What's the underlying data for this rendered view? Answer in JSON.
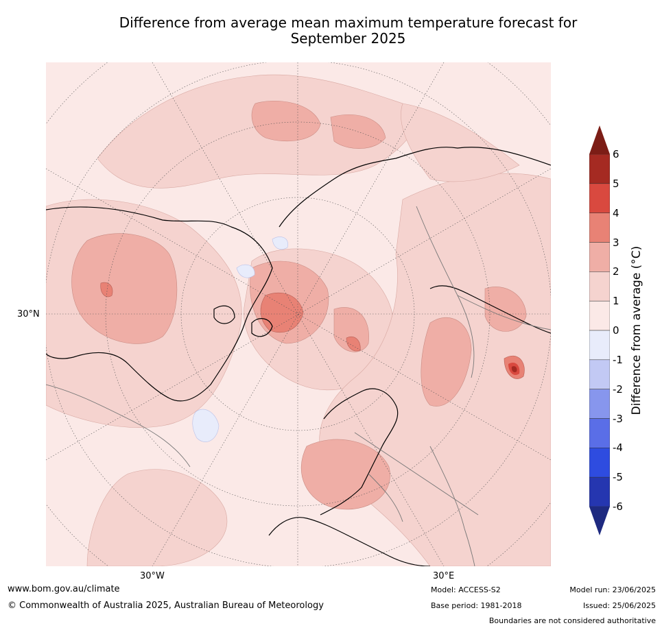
{
  "title_line1": "Difference from average mean maximum temperature forecast for",
  "title_line2": "September 2025",
  "axis_labels": {
    "lat": "30°N",
    "lon_west": "30°W",
    "lon_east": "30°E"
  },
  "colorbar": {
    "title": "Difference from average (°C)",
    "levels": [
      {
        "label": "6",
        "color": "#a52a22"
      },
      {
        "label": "5",
        "color": "#d9493f"
      },
      {
        "label": "4",
        "color": "#e88275"
      },
      {
        "label": "3",
        "color": "#efaea6"
      },
      {
        "label": "2",
        "color": "#f5d3cf"
      },
      {
        "label": "1",
        "color": "#fbe9e7"
      },
      {
        "label": "0",
        "color": "#e8ecfb"
      },
      {
        "label": "-1",
        "color": "#c2c9f4"
      },
      {
        "label": "-2",
        "color": "#8796ed"
      },
      {
        "label": "-3",
        "color": "#5a6ee7"
      },
      {
        "label": "-4",
        "color": "#2e4ce0"
      },
      {
        "label": "-5",
        "color": "#2536b0"
      },
      {
        "label": "-6",
        "color": "#1e2a80"
      }
    ],
    "over_color": "#7c1d16",
    "under_color": "#1e2a80"
  },
  "footer": {
    "url": "www.bom.gov.au/climate",
    "copyright": "© Commonwealth of Australia 2025, Australian Bureau of Meteorology",
    "model": "Model: ACCESS-S2",
    "base_period": "Base period: 1981-2018",
    "model_run": "Model run: 23/06/2025",
    "issued": "Issued: 25/06/2025",
    "disclaimer": "Boundaries are not considered authoritative"
  }
}
